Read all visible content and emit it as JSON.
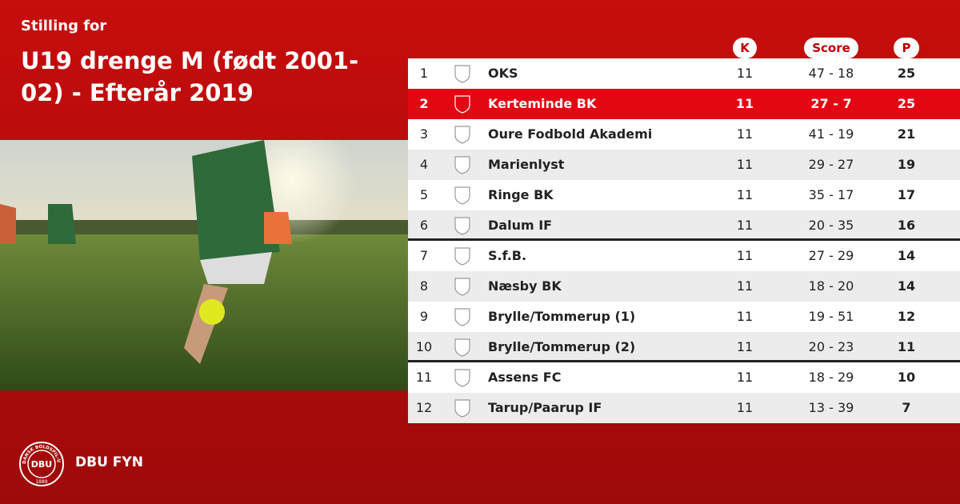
{
  "header": {
    "subtitle": "Stilling for",
    "title": "U19 drenge M (født 2001-02) - Efterår 2019"
  },
  "table": {
    "columns": [
      "K",
      "Score",
      "P"
    ],
    "rows": [
      [
        "1",
        "OKS",
        "11",
        "47 - 18",
        "25"
      ],
      [
        "2",
        "Kerteminde BK",
        "11",
        "27 - 7",
        "25"
      ],
      [
        "3",
        "Oure Fodbold Akademi",
        "11",
        "41 - 19",
        "21"
      ],
      [
        "4",
        "Marienlyst",
        "11",
        "29 - 27",
        "19"
      ],
      [
        "5",
        "Ringe BK",
        "11",
        "35 - 17",
        "17"
      ],
      [
        "6",
        "Dalum IF",
        "11",
        "20 - 35",
        "16"
      ],
      [
        "7",
        "S.f.B.",
        "11",
        "27 - 29",
        "14"
      ],
      [
        "8",
        "Næsby BK",
        "11",
        "18 - 20",
        "14"
      ],
      [
        "9",
        "Brylle/Tommerup (1)",
        "11",
        "19 - 51",
        "12"
      ],
      [
        "10",
        "Brylle/Tommerup (2)",
        "11",
        "20 - 23",
        "11"
      ],
      [
        "11",
        "Assens FC",
        "11",
        "18 - 29",
        "10"
      ],
      [
        "12",
        "Tarup/Paarup IF",
        "11",
        "13 - 39",
        "7"
      ]
    ],
    "highlight_row": 1,
    "separators_after": [
      5,
      9
    ]
  },
  "footer": {
    "logo_text": "DBU",
    "logo_ring": "DANSK BOLDSPIL-UNION",
    "logo_year": "1889",
    "brand": "DBU FYN"
  }
}
